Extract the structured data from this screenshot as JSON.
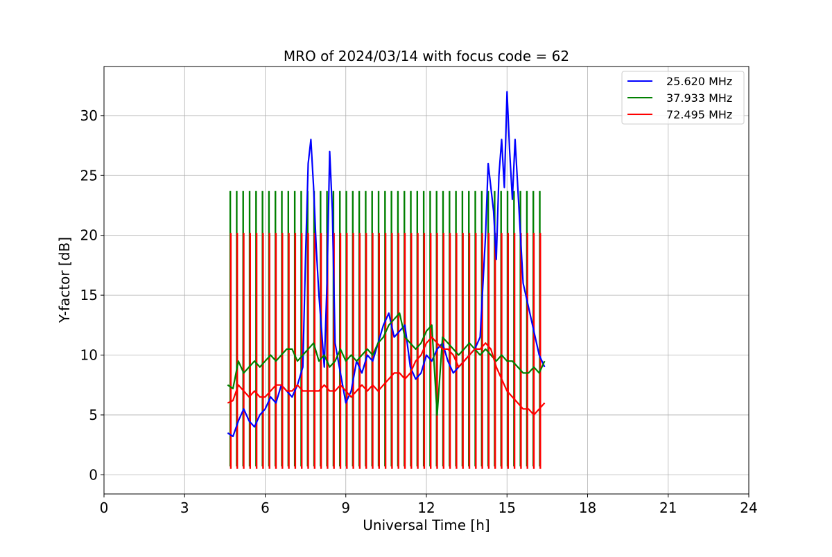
{
  "chart_data": {
    "type": "line",
    "title": "MRO of 2024/03/14 with focus code = 62",
    "xlabel": "Universal Time [h]",
    "ylabel": "Y-factor [dB]",
    "xlim": [
      0,
      24
    ],
    "ylim": [
      -1.6,
      34.1
    ],
    "x_ticks": [
      0,
      3,
      6,
      9,
      12,
      15,
      18,
      21,
      24
    ],
    "y_ticks": [
      0,
      5,
      10,
      15,
      20,
      25,
      30
    ],
    "grid": true,
    "legend_position": "top-right",
    "series": [
      {
        "name": "25.620 MHz",
        "color": "#0000ff",
        "x": [
          4.6,
          4.8,
          5.0,
          5.2,
          5.4,
          5.6,
          5.8,
          6.0,
          6.2,
          6.4,
          6.6,
          6.8,
          7.0,
          7.2,
          7.4,
          7.5,
          7.6,
          7.7,
          7.8,
          7.9,
          8.0,
          8.1,
          8.2,
          8.3,
          8.4,
          8.5,
          8.6,
          8.8,
          9.0,
          9.2,
          9.4,
          9.6,
          9.8,
          10.0,
          10.2,
          10.4,
          10.6,
          10.8,
          11.0,
          11.2,
          11.4,
          11.6,
          11.8,
          12.0,
          12.2,
          12.4,
          12.6,
          12.8,
          13.0,
          13.2,
          13.4,
          13.6,
          13.8,
          14.0,
          14.2,
          14.3,
          14.4,
          14.5,
          14.6,
          14.7,
          14.8,
          14.9,
          15.0,
          15.1,
          15.2,
          15.3,
          15.4,
          15.6,
          15.8,
          16.0,
          16.2,
          16.4
        ],
        "y": [
          3.5,
          3.2,
          4.5,
          5.5,
          4.5,
          4.0,
          5.0,
          5.5,
          6.5,
          6.0,
          7.5,
          7.0,
          6.5,
          7.5,
          9.0,
          18.0,
          26.0,
          28.0,
          24.0,
          19.0,
          15.0,
          12.0,
          9.0,
          16.0,
          27.0,
          22.0,
          11.0,
          8.5,
          6.0,
          7.0,
          9.5,
          8.5,
          10.0,
          9.5,
          11.0,
          12.5,
          13.5,
          11.5,
          12.0,
          12.5,
          9.0,
          8.0,
          8.5,
          10.0,
          9.5,
          10.5,
          11.0,
          9.5,
          8.5,
          9.0,
          9.5,
          10.0,
          10.5,
          11.5,
          20.0,
          26.0,
          24.0,
          22.0,
          18.0,
          25.0,
          28.0,
          24.0,
          32.0,
          27.0,
          23.0,
          28.0,
          24.0,
          16.0,
          14.0,
          12.0,
          10.0,
          9.0
        ]
      },
      {
        "name": "37.933 MHz",
        "color": "#008000",
        "x": [
          4.6,
          4.8,
          5.0,
          5.2,
          5.4,
          5.6,
          5.8,
          6.0,
          6.2,
          6.4,
          6.6,
          6.8,
          7.0,
          7.2,
          7.4,
          7.6,
          7.8,
          8.0,
          8.2,
          8.4,
          8.6,
          8.8,
          9.0,
          9.2,
          9.4,
          9.6,
          9.8,
          10.0,
          10.2,
          10.4,
          10.6,
          10.8,
          11.0,
          11.2,
          11.4,
          11.6,
          11.8,
          12.0,
          12.2,
          12.4,
          12.6,
          12.8,
          13.0,
          13.2,
          13.4,
          13.6,
          13.8,
          14.0,
          14.2,
          14.4,
          14.6,
          14.8,
          15.0,
          15.2,
          15.4,
          15.6,
          15.8,
          16.0,
          16.2,
          16.4
        ],
        "y": [
          7.5,
          7.2,
          9.5,
          8.5,
          9.0,
          9.5,
          9.0,
          9.5,
          10.0,
          9.5,
          10.0,
          10.5,
          10.5,
          9.5,
          10.0,
          10.5,
          11.0,
          9.5,
          10.0,
          9.0,
          9.5,
          10.5,
          9.5,
          10.0,
          9.5,
          10.0,
          10.5,
          10.0,
          11.0,
          11.5,
          12.5,
          13.0,
          13.5,
          11.5,
          11.0,
          10.5,
          11.0,
          12.0,
          12.5,
          5.0,
          11.5,
          11.0,
          10.5,
          10.0,
          10.5,
          11.0,
          10.5,
          10.0,
          10.5,
          10.0,
          9.5,
          10.0,
          9.5,
          9.5,
          9.0,
          8.5,
          8.5,
          9.0,
          8.5,
          9.5
        ]
      },
      {
        "name": "72.495 MHz",
        "color": "#ff0000",
        "x": [
          4.6,
          4.8,
          5.0,
          5.2,
          5.4,
          5.6,
          5.8,
          6.0,
          6.2,
          6.4,
          6.6,
          6.8,
          7.0,
          7.2,
          7.4,
          7.6,
          7.8,
          8.0,
          8.2,
          8.4,
          8.6,
          8.8,
          9.0,
          9.2,
          9.4,
          9.6,
          9.8,
          10.0,
          10.2,
          10.4,
          10.6,
          10.8,
          11.0,
          11.2,
          11.4,
          11.6,
          11.8,
          12.0,
          12.2,
          12.4,
          12.6,
          12.8,
          13.0,
          13.2,
          13.4,
          13.6,
          13.8,
          14.0,
          14.2,
          14.4,
          14.6,
          14.8,
          15.0,
          15.2,
          15.4,
          15.6,
          15.8,
          16.0,
          16.2,
          16.4
        ],
        "y": [
          6.0,
          6.2,
          7.5,
          7.0,
          6.5,
          7.0,
          6.5,
          6.5,
          7.0,
          7.5,
          7.5,
          7.0,
          7.0,
          7.5,
          7.0,
          7.0,
          7.0,
          7.0,
          7.5,
          7.0,
          7.0,
          7.5,
          7.0,
          6.5,
          7.0,
          7.5,
          7.0,
          7.5,
          7.0,
          7.5,
          8.0,
          8.5,
          8.5,
          8.0,
          8.5,
          9.5,
          10.0,
          11.0,
          11.5,
          11.0,
          10.5,
          10.5,
          10.0,
          9.0,
          9.5,
          10.0,
          10.5,
          10.5,
          11.0,
          10.5,
          9.0,
          8.0,
          7.0,
          6.5,
          6.0,
          5.5,
          5.5,
          5.0,
          5.5,
          6.0
        ]
      }
    ],
    "pulse_series": [
      {
        "name": "37.933 MHz",
        "color": "#008000",
        "peak": 23.7,
        "trough": 0.7,
        "x": [
          4.7,
          4.94,
          5.18,
          5.42,
          5.66,
          5.9,
          6.14,
          6.38,
          6.62,
          6.86,
          7.1,
          7.34,
          7.58,
          7.82,
          8.06,
          8.3,
          8.54,
          8.78,
          9.02,
          9.26,
          9.5,
          9.74,
          9.98,
          10.22,
          10.46,
          10.7,
          10.94,
          11.18,
          11.42,
          11.66,
          11.9,
          12.14,
          12.38,
          12.62,
          12.86,
          13.1,
          13.34,
          13.58,
          13.82,
          14.06,
          14.3,
          14.54,
          14.78,
          15.02,
          15.26,
          15.5,
          15.74,
          15.98,
          16.22
        ]
      },
      {
        "name": "72.495 MHz",
        "color": "#ff0000",
        "peak": 20.2,
        "trough": 0.5,
        "x": [
          4.72,
          4.96,
          5.2,
          5.44,
          5.68,
          5.92,
          6.16,
          6.4,
          6.64,
          6.88,
          7.12,
          7.36,
          7.6,
          7.84,
          8.08,
          8.32,
          8.56,
          8.8,
          9.04,
          9.28,
          9.52,
          9.76,
          10.0,
          10.24,
          10.48,
          10.72,
          10.96,
          11.2,
          11.44,
          11.68,
          11.92,
          12.16,
          12.4,
          12.64,
          12.88,
          13.12,
          13.36,
          13.6,
          13.84,
          14.08,
          14.32,
          14.56,
          14.8,
          15.04,
          15.28,
          15.52,
          15.76,
          16.0,
          16.24
        ]
      }
    ]
  }
}
